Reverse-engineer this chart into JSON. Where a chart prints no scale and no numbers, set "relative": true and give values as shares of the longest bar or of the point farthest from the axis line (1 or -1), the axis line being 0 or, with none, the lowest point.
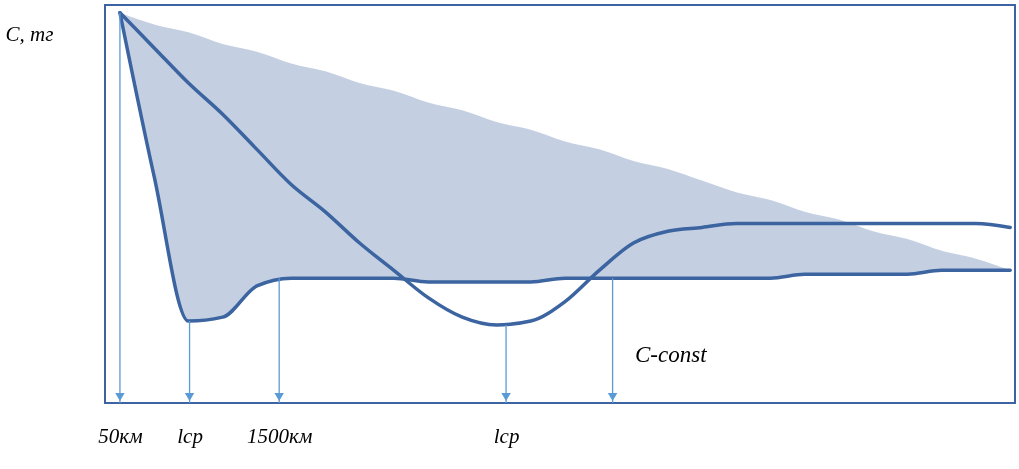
{
  "chart_data": {
    "type": "line",
    "relative": true,
    "ylabel": "C, тг",
    "xlim": [
      -86,
      8200
    ],
    "xticks": [
      {
        "value": 50,
        "label": "50км"
      },
      {
        "value": 684,
        "label": "lcp"
      },
      {
        "value": 1500,
        "label": "1500км"
      },
      {
        "value": 3566,
        "label": "lcp"
      }
    ],
    "x": [
      50,
      362,
      674,
      985,
      1297,
      1609,
      1920,
      2232,
      2544,
      2856,
      3167,
      3479,
      3791,
      4103,
      4414,
      4726,
      5038,
      5350,
      5661,
      5973,
      6285,
      6597,
      6908,
      7220,
      7532,
      7844,
      8156
    ],
    "series": [
      {
        "color": "#3b64a0",
        "values": [
          1.0,
          0.91,
          0.82,
          0.74,
          0.65,
          0.56,
          0.49,
          0.41,
          0.34,
          0.27,
          0.22,
          0.2,
          0.21,
          0.26,
          0.34,
          0.41,
          0.44,
          0.45,
          0.46,
          0.46,
          0.46,
          0.46,
          0.46,
          0.46,
          0.46,
          0.46,
          0.45
        ]
      },
      {
        "color": "#3b64a0",
        "values": [
          1.0,
          0.58,
          0.21,
          0.22,
          0.3,
          0.32,
          0.32,
          0.32,
          0.32,
          0.31,
          0.31,
          0.31,
          0.31,
          0.32,
          0.32,
          0.32,
          0.32,
          0.32,
          0.32,
          0.32,
          0.33,
          0.33,
          0.33,
          0.33,
          0.34,
          0.34,
          0.34
        ],
        "lower": [
          1.0,
          0.58,
          0.21,
          0.22,
          0.3,
          0.32,
          0.32,
          0.32,
          0.32,
          0.31,
          0.31,
          0.31,
          0.31,
          0.32,
          0.32,
          0.32,
          0.32,
          0.32,
          0.32,
          0.32,
          0.33,
          0.33,
          0.33,
          0.33,
          0.34,
          0.34,
          0.34
        ],
        "upper": [
          1.0,
          0.97,
          0.95,
          0.92,
          0.9,
          0.87,
          0.85,
          0.82,
          0.8,
          0.77,
          0.75,
          0.72,
          0.7,
          0.67,
          0.65,
          0.62,
          0.6,
          0.57,
          0.54,
          0.52,
          0.49,
          0.47,
          0.44,
          0.42,
          0.39,
          0.37,
          0.34
        ]
      }
    ],
    "ref_lines": [
      {
        "axis": "x",
        "value": 50,
        "color": "#5b9bd5"
      },
      {
        "axis": "x",
        "value": 684,
        "color": "#5b9bd5"
      },
      {
        "axis": "x",
        "value": 1500,
        "color": "#5b9bd5"
      },
      {
        "axis": "x",
        "value": 3566,
        "color": "#5b9bd5"
      },
      {
        "axis": "x",
        "value": 4536,
        "color": "#5b9bd5"
      }
    ],
    "annotations": [
      "C-const"
    ],
    "marker": "none",
    "line_style": "solid"
  }
}
